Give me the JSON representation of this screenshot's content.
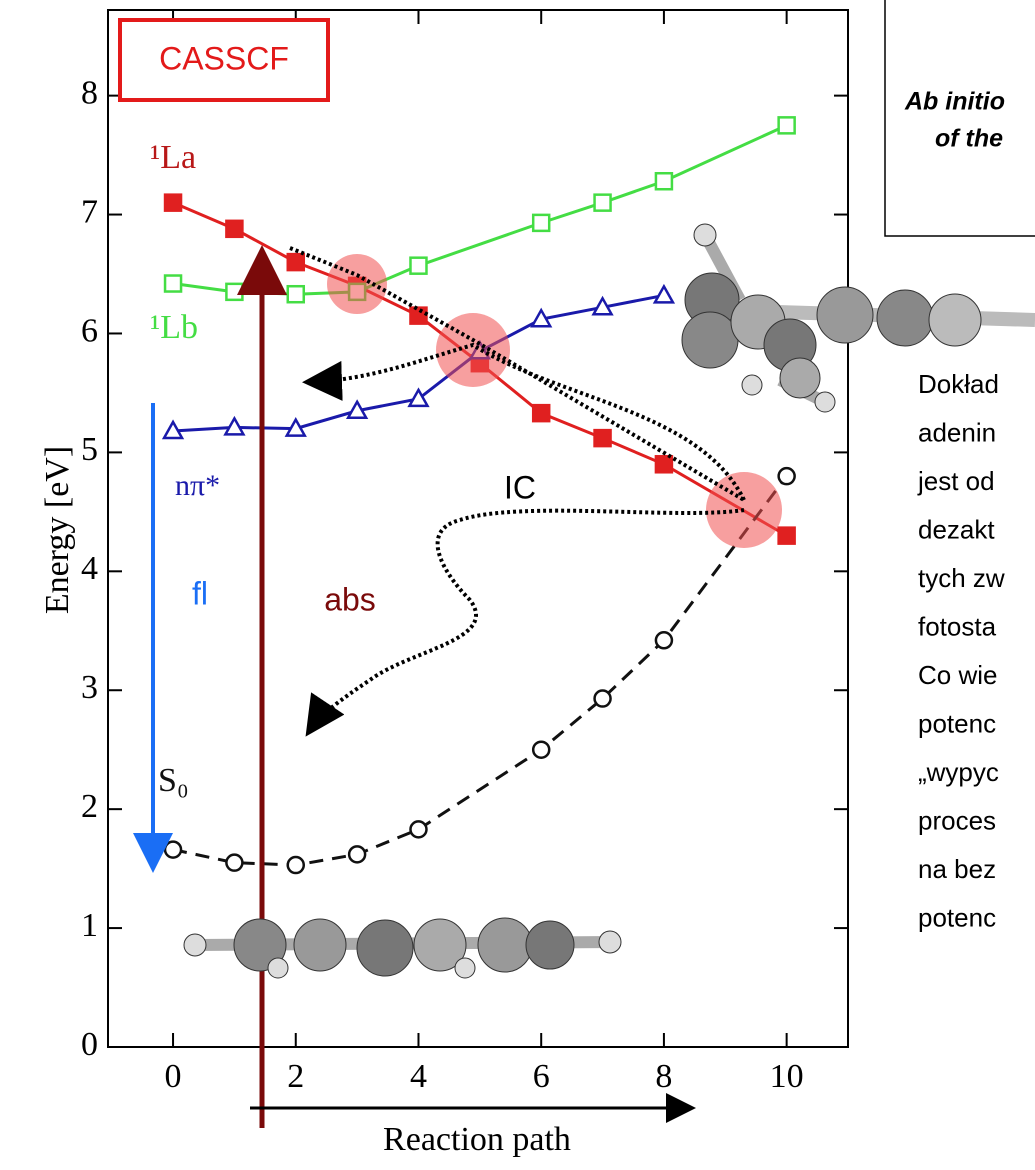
{
  "chart_data": {
    "type": "line",
    "label_box": "CASSCF",
    "xlabel": "Reaction path",
    "ylabel": "Energy [eV]",
    "xlim": [
      -1.06,
      11.0
    ],
    "ylim": [
      0,
      8.72
    ],
    "xticks": [
      0,
      2,
      4,
      6,
      8,
      10
    ],
    "yticks": [
      0,
      1,
      2,
      3,
      4,
      5,
      6,
      7,
      8
    ],
    "series": [
      {
        "name": "¹La",
        "color": "#e02020",
        "marker": "filled-square",
        "dashed": false,
        "x": [
          0,
          1,
          2,
          3,
          4,
          5,
          6,
          7,
          8,
          10
        ],
        "values": [
          7.1,
          6.88,
          6.6,
          6.4,
          6.15,
          5.75,
          5.33,
          5.12,
          4.9,
          4.3
        ]
      },
      {
        "name": "¹Lb",
        "color": "#44dd44",
        "marker": "open-square",
        "dashed": false,
        "x": [
          0,
          1,
          2,
          3,
          4,
          6,
          7,
          8,
          10
        ],
        "values": [
          6.42,
          6.35,
          6.33,
          6.35,
          6.57,
          6.93,
          7.1,
          7.28,
          7.75
        ]
      },
      {
        "name": "nπ*",
        "color": "#1a1aaa",
        "marker": "open-triangle",
        "dashed": false,
        "x": [
          0,
          1,
          2,
          3,
          4,
          5,
          6,
          7,
          8
        ],
        "values": [
          5.18,
          5.21,
          5.2,
          5.35,
          5.45,
          5.85,
          6.12,
          6.22,
          6.32
        ]
      },
      {
        "name": "S₀",
        "color": "#111111",
        "marker": "open-circle",
        "dashed": true,
        "x": [
          0,
          1,
          2,
          3,
          4,
          6,
          7,
          8,
          10
        ],
        "values": [
          1.66,
          1.55,
          1.53,
          1.62,
          1.83,
          2.5,
          2.93,
          3.42,
          4.8
        ]
      }
    ],
    "annotations": [
      "IC",
      "fl",
      "abs"
    ]
  },
  "side_box": {
    "lines": [
      "Ab initio",
      "of the"
    ]
  },
  "side_text": {
    "lines": [
      "Dokład",
      "adenin",
      "jest od",
      "dezakt",
      "tych zw",
      "fotosta",
      "Co wie",
      "potenc",
      "„wypyc",
      "proces",
      "na bez",
      "potenc"
    ]
  }
}
